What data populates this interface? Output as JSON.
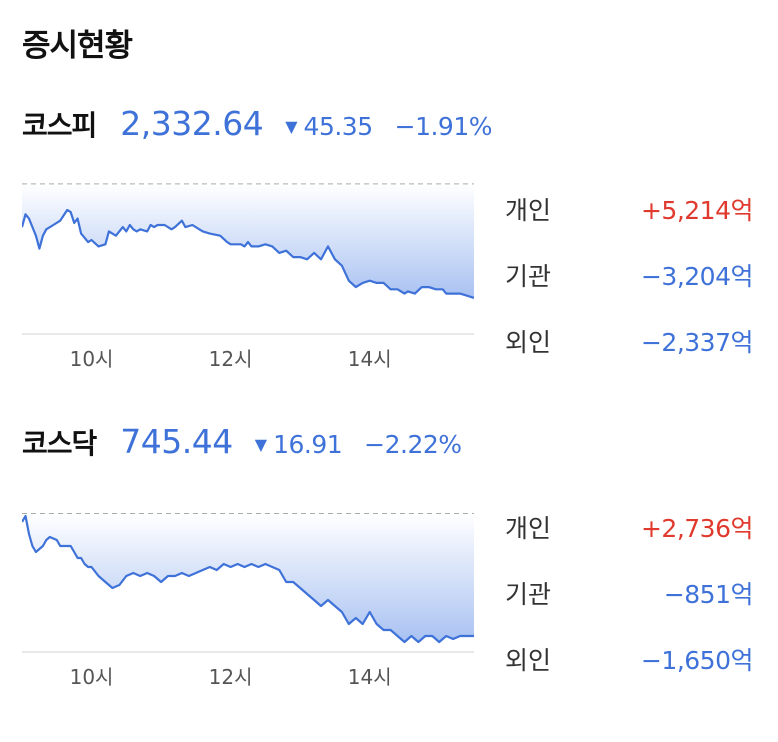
{
  "page_title": "증시현황",
  "colors": {
    "accent_down": "#3f72d9",
    "positive": "#e03a2e",
    "area_top": "#c9d8f7",
    "area_bottom": "#a9c2f2"
  },
  "indices": [
    {
      "name": "코스피",
      "value": "2,332.64",
      "direction_icon": "down-triangle-icon",
      "direction_symbol": "▼",
      "change": "45.35",
      "rate": "−1.91%",
      "investors": [
        {
          "label": "개인",
          "amount": "+5,214억",
          "sign": "pos"
        },
        {
          "label": "기관",
          "amount": "−3,204억",
          "sign": "neg"
        },
        {
          "label": "외인",
          "amount": "−2,337억",
          "sign": "neg"
        }
      ]
    },
    {
      "name": "코스닥",
      "value": "745.44",
      "direction_icon": "down-triangle-icon",
      "direction_symbol": "▼",
      "change": "16.91",
      "rate": "−2.22%",
      "investors": [
        {
          "label": "개인",
          "amount": "+2,736억",
          "sign": "pos"
        },
        {
          "label": "기관",
          "amount": "−851억",
          "sign": "neg"
        },
        {
          "label": "외인",
          "amount": "−1,650억",
          "sign": "neg"
        }
      ]
    }
  ],
  "chart_data": [
    {
      "type": "area",
      "x_ticks": [
        10,
        12,
        14
      ],
      "x_tick_labels": [
        "10시",
        "12시",
        "14시"
      ],
      "xlim": [
        9,
        15.5
      ],
      "ylim": [
        2310,
        2380
      ],
      "reference_line": 2377.99,
      "grid": false,
      "x": [
        9.0,
        9.05,
        9.1,
        9.2,
        9.25,
        9.3,
        9.35,
        9.45,
        9.55,
        9.65,
        9.7,
        9.75,
        9.8,
        9.85,
        9.95,
        10.0,
        10.1,
        10.2,
        10.25,
        10.35,
        10.45,
        10.5,
        10.55,
        10.6,
        10.65,
        10.7,
        10.8,
        10.85,
        10.9,
        10.95,
        11.05,
        11.15,
        11.2,
        11.3,
        11.35,
        11.45,
        11.55,
        11.6,
        11.7,
        11.85,
        11.95,
        12.0,
        12.1,
        12.15,
        12.2,
        12.25,
        12.3,
        12.4,
        12.5,
        12.6,
        12.7,
        12.8,
        12.9,
        13.0,
        13.1,
        13.2,
        13.3,
        13.4,
        13.5,
        13.6,
        13.7,
        13.8,
        13.9,
        14.0,
        14.1,
        14.2,
        14.3,
        14.4,
        14.45,
        14.5,
        14.55,
        14.65,
        14.75,
        14.85,
        14.95,
        15.05,
        15.1,
        15.15,
        15.2,
        15.3,
        15.4,
        15.5
      ],
      "values": [
        2358,
        2364,
        2362,
        2354,
        2348,
        2354,
        2357,
        2359,
        2361,
        2366,
        2365,
        2360,
        2362,
        2355,
        2351,
        2352,
        2349,
        2350,
        2356,
        2354,
        2358,
        2356,
        2359,
        2357,
        2356,
        2357,
        2356,
        2359,
        2358,
        2359,
        2359,
        2357,
        2358,
        2361,
        2358,
        2359,
        2357,
        2356,
        2355,
        2354,
        2351,
        2350,
        2350,
        2350,
        2349,
        2351,
        2349,
        2349,
        2350,
        2349,
        2346,
        2347,
        2344,
        2344,
        2343,
        2346,
        2343,
        2349,
        2343,
        2340,
        2333,
        2330,
        2332,
        2333,
        2332,
        2332,
        2329,
        2329,
        2328,
        2327,
        2328,
        2327,
        2330,
        2330,
        2329,
        2329,
        2327,
        2327,
        2327,
        2327,
        2326,
        2325
      ]
    },
    {
      "type": "area",
      "x_ticks": [
        10,
        12,
        14
      ],
      "x_tick_labels": [
        "10시",
        "12시",
        "14시"
      ],
      "xlim": [
        9,
        15.5
      ],
      "ylim": [
        740,
        765
      ],
      "reference_line": 762.35,
      "grid": false,
      "x": [
        9.0,
        9.05,
        9.1,
        9.15,
        9.2,
        9.3,
        9.35,
        9.4,
        9.5,
        9.55,
        9.6,
        9.7,
        9.75,
        9.8,
        9.85,
        9.9,
        9.95,
        10.0,
        10.1,
        10.2,
        10.3,
        10.4,
        10.5,
        10.6,
        10.7,
        10.8,
        10.9,
        11.0,
        11.1,
        11.2,
        11.3,
        11.4,
        11.5,
        11.6,
        11.7,
        11.8,
        11.9,
        12.0,
        12.1,
        12.2,
        12.3,
        12.4,
        12.5,
        12.6,
        12.7,
        12.8,
        12.9,
        13.0,
        13.1,
        13.2,
        13.3,
        13.4,
        13.5,
        13.6,
        13.7,
        13.8,
        13.9,
        14.0,
        14.1,
        14.2,
        14.3,
        14.4,
        14.5,
        14.6,
        14.7,
        14.8,
        14.9,
        15.0,
        15.1,
        15.2,
        15.3,
        15.4,
        15.5
      ],
      "values": [
        761,
        762,
        759,
        757,
        756,
        757,
        758,
        758.5,
        758,
        757,
        757,
        757,
        756,
        755,
        755,
        754,
        753.5,
        753.5,
        752,
        751,
        750,
        750.5,
        752,
        752.5,
        752,
        752.5,
        752,
        751,
        752,
        752,
        752.5,
        752,
        752.5,
        753,
        753.5,
        753,
        754,
        753.5,
        754,
        753.5,
        754,
        753.5,
        754,
        753.5,
        753,
        751,
        751,
        750,
        749,
        748,
        747,
        748,
        747,
        746,
        744,
        745,
        744,
        746,
        744,
        743,
        743,
        742,
        741,
        742,
        741,
        742,
        742,
        741,
        742,
        741.5,
        742,
        742,
        742
      ]
    }
  ]
}
